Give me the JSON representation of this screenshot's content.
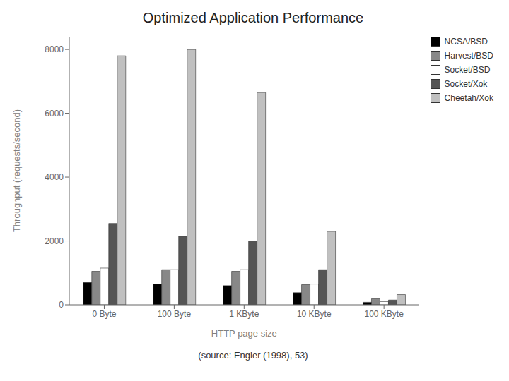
{
  "chart_data": {
    "type": "bar",
    "title": "Optimized Application Performance",
    "subtitle": "(source: Engler (1998), 53)",
    "xlabel": "HTTP page size",
    "ylabel": "Throughput (requests/second)",
    "categories": [
      "0 Byte",
      "100 Byte",
      "1 KByte",
      "10 KByte",
      "100 KByte"
    ],
    "series": [
      {
        "name": "NCSA/BSD",
        "color": "#000000",
        "values": [
          700,
          650,
          600,
          380,
          80
        ]
      },
      {
        "name": "Harvest/BSD",
        "color": "#888888",
        "values": [
          1050,
          1100,
          1050,
          630,
          190
        ]
      },
      {
        "name": "Socket/BSD",
        "color": "#ffffff",
        "values": [
          1150,
          1100,
          1100,
          650,
          100
        ]
      },
      {
        "name": "Socket/Xok",
        "color": "#555555",
        "values": [
          2550,
          2150,
          2000,
          1100,
          150
        ]
      },
      {
        "name": "Cheetah/Xok",
        "color": "#c0c0c0",
        "values": [
          7800,
          8000,
          6650,
          2300,
          320
        ]
      }
    ],
    "ylim": [
      0,
      8400
    ],
    "yticks": [
      0,
      2000,
      4000,
      6000,
      8000
    ],
    "legend": "upper right"
  }
}
